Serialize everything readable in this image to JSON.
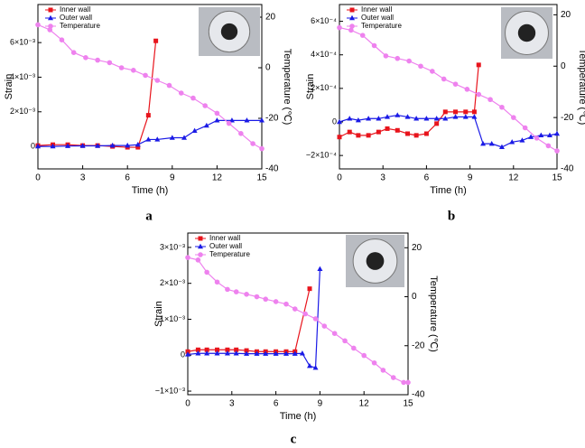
{
  "chart_data": [
    {
      "type": "line",
      "label": "a",
      "x_label": "Time (h)",
      "y_label": "Strain",
      "y2_label": "Temperature (℃)",
      "xlim": [
        0,
        15
      ],
      "xticks": [
        0,
        3,
        6,
        9,
        12,
        15
      ],
      "ylim": [
        -0.0013,
        0.0082
      ],
      "yticks": [
        0,
        {
          "value": 0.002,
          "label": "2×10⁻³"
        },
        {
          "value": 0.004,
          "label": "4×10⁻³"
        },
        {
          "value": 0.006,
          "label": "6×10⁻³"
        }
      ],
      "y2lim": [
        -40,
        25
      ],
      "y2ticks": [
        -40,
        -20,
        0,
        20
      ],
      "series": [
        {
          "name": "Inner wall",
          "color": "#e8141c",
          "marker": "square",
          "x": [
            0,
            1,
            2,
            3,
            4,
            5,
            6,
            6.7,
            7.4,
            7.9
          ],
          "values": [
            5e-05,
            0.0001,
            0.0001,
            5e-05,
            5e-05,
            0,
            -5e-05,
            -5e-05,
            0.0018,
            0.0061
          ]
        },
        {
          "name": "Outer wall",
          "color": "#1a1ae6",
          "marker": "triangle",
          "x": [
            0,
            1,
            2,
            3,
            4,
            5,
            6,
            6.7,
            7.4,
            8,
            9,
            9.8,
            10.5,
            11.3,
            12,
            13,
            14,
            15
          ],
          "values": [
            0,
            0,
            2e-05,
            3e-05,
            3e-05,
            5e-05,
            5e-05,
            0.0001,
            0.0004,
            0.0004,
            0.0005,
            0.0005,
            0.0009,
            0.0012,
            0.0015,
            0.0015,
            0.0015,
            0.0015
          ]
        },
        {
          "name": "Temperature",
          "color": "#ee82ee",
          "marker": "circle",
          "axis": "y2",
          "x": [
            0,
            0.8,
            1.6,
            2.4,
            3.2,
            4,
            4.8,
            5.6,
            6.4,
            7.2,
            8,
            8.8,
            9.6,
            10.4,
            11.2,
            12,
            12.8,
            13.6,
            14.4,
            15
          ],
          "values": [
            17,
            15,
            11,
            6,
            4,
            3,
            2,
            0,
            -1,
            -3,
            -5,
            -7,
            -10,
            -12,
            -15,
            -18,
            -22,
            -26,
            -30,
            -32
          ]
        }
      ]
    },
    {
      "type": "line",
      "label": "b",
      "x_label": "Time (h)",
      "y_label": "Strain",
      "y2_label": "Temperature (℃)",
      "xlim": [
        0,
        15
      ],
      "xticks": [
        0,
        3,
        6,
        9,
        12,
        15
      ],
      "ylim": [
        -0.00028,
        0.0007
      ],
      "yticks": [
        {
          "value": -0.0002,
          "label": "−2×10⁻⁴"
        },
        0,
        {
          "value": 0.0002,
          "label": "2×10⁻⁴"
        },
        {
          "value": 0.0004,
          "label": "4×10⁻⁴"
        },
        {
          "value": 0.0006,
          "label": "6×10⁻⁴"
        }
      ],
      "y2lim": [
        -40,
        24
      ],
      "y2ticks": [
        -40,
        -20,
        0,
        20
      ],
      "series": [
        {
          "name": "Inner wall",
          "color": "#e8141c",
          "marker": "square",
          "x": [
            0,
            0.7,
            1.3,
            2,
            2.7,
            3.3,
            4,
            4.7,
            5.3,
            6,
            6.7,
            7.3,
            8,
            8.7,
            9.3,
            9.6
          ],
          "values": [
            -9e-05,
            -6e-05,
            -8e-05,
            -8e-05,
            -6e-05,
            -4e-05,
            -5e-05,
            -7e-05,
            -8e-05,
            -7e-05,
            -1e-05,
            6e-05,
            6e-05,
            6e-05,
            6e-05,
            0.00034
          ]
        },
        {
          "name": "Outer wall",
          "color": "#1a1ae6",
          "marker": "triangle",
          "x": [
            0,
            0.7,
            1.3,
            2,
            2.7,
            3.3,
            4,
            4.7,
            5.3,
            6,
            6.7,
            7.3,
            8,
            8.7,
            9.3,
            9.9,
            10.5,
            11.2,
            11.9,
            12.6,
            13.2,
            13.9,
            14.5,
            15
          ],
          "values": [
            0,
            2e-05,
            1e-05,
            2e-05,
            2e-05,
            3e-05,
            4e-05,
            3e-05,
            2e-05,
            2e-05,
            2e-05,
            2e-05,
            3e-05,
            3e-05,
            3e-05,
            -0.00013,
            -0.00013,
            -0.00015,
            -0.00012,
            -0.00011,
            -9e-05,
            -8e-05,
            -8e-05,
            -7e-05
          ]
        },
        {
          "name": "Temperature",
          "color": "#ee82ee",
          "marker": "circle",
          "axis": "y2",
          "x": [
            0,
            0.8,
            1.6,
            2.4,
            3.2,
            4,
            4.8,
            5.6,
            6.4,
            7.2,
            8,
            8.8,
            9.6,
            10.4,
            11.2,
            12,
            12.8,
            13.6,
            14.4,
            15
          ],
          "values": [
            15,
            14,
            12,
            8,
            4,
            3,
            2,
            0,
            -2,
            -5,
            -7,
            -9,
            -11,
            -13,
            -16,
            -20,
            -24,
            -28,
            -31,
            -33
          ]
        }
      ]
    },
    {
      "type": "line",
      "label": "c",
      "x_label": "Time (h)",
      "y_label": "Strain",
      "y2_label": "Temperature (℃)",
      "xlim": [
        0,
        15
      ],
      "xticks": [
        0,
        3,
        6,
        9,
        12,
        15
      ],
      "ylim": [
        -0.0011,
        0.0034
      ],
      "yticks": [
        {
          "value": -0.001,
          "label": "−1×10⁻³"
        },
        0,
        {
          "value": 0.001,
          "label": "1×10⁻³"
        },
        {
          "value": 0.002,
          "label": "2×10⁻³"
        },
        {
          "value": 0.003,
          "label": "3×10⁻³"
        }
      ],
      "y2lim": [
        -40,
        26
      ],
      "y2ticks": [
        -40,
        -20,
        0,
        20
      ],
      "series": [
        {
          "name": "Inner wall",
          "color": "#e8141c",
          "marker": "square",
          "x": [
            0,
            0.7,
            1.3,
            2,
            2.7,
            3.3,
            4,
            4.7,
            5.3,
            6,
            6.7,
            7.3,
            8.3
          ],
          "values": [
            0.0001,
            0.00015,
            0.00015,
            0.00015,
            0.00015,
            0.00015,
            0.00013,
            0.0001,
            0.0001,
            0.0001,
            0.0001,
            0.0001,
            0.00185
          ]
        },
        {
          "name": "Outer wall",
          "color": "#1a1ae6",
          "marker": "triangle",
          "x": [
            0,
            0.7,
            1.3,
            2,
            2.7,
            3.3,
            4,
            4.7,
            5.3,
            6,
            6.7,
            7.3,
            7.8,
            8.3,
            8.7,
            9
          ],
          "values": [
            2e-05,
            5e-05,
            5e-05,
            5e-05,
            5e-05,
            5e-05,
            4e-05,
            4e-05,
            4e-05,
            4e-05,
            4e-05,
            4e-05,
            5e-05,
            -0.0003,
            -0.00035,
            0.0024
          ]
        },
        {
          "name": "Temperature",
          "color": "#ee82ee",
          "marker": "circle",
          "axis": "y2",
          "x": [
            0,
            0.7,
            1.3,
            2,
            2.7,
            3.3,
            4,
            4.7,
            5.3,
            6,
            6.7,
            7.3,
            8,
            8.7,
            9.3,
            10,
            10.7,
            11.3,
            12,
            12.7,
            13.3,
            14,
            14.7,
            15
          ],
          "values": [
            16,
            15,
            10,
            6,
            3,
            2,
            1,
            0,
            -1,
            -2,
            -3,
            -5,
            -7,
            -9,
            -12,
            -15,
            -18,
            -21,
            -24,
            -27,
            -30,
            -33,
            -35,
            -35
          ]
        }
      ]
    }
  ]
}
